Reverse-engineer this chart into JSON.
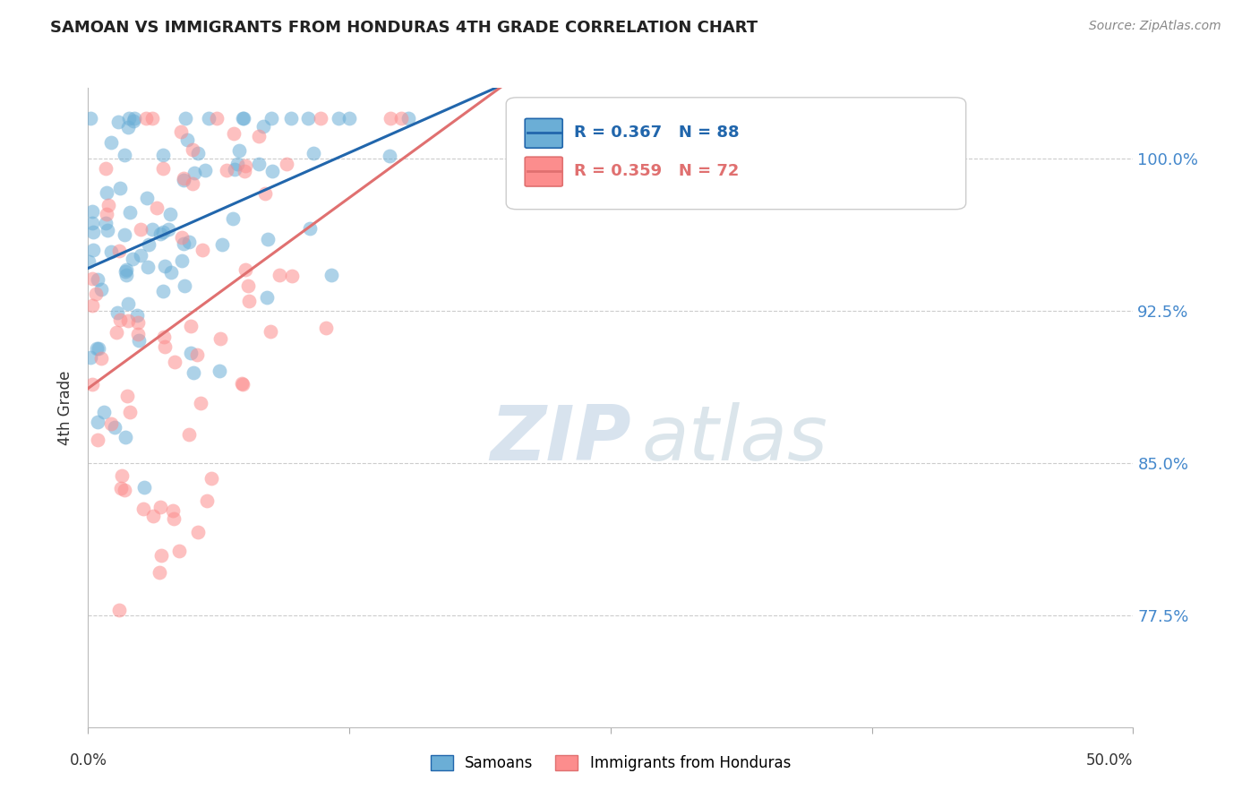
{
  "title": "SAMOAN VS IMMIGRANTS FROM HONDURAS 4TH GRADE CORRELATION CHART",
  "source": "Source: ZipAtlas.com",
  "ylabel": "4th Grade",
  "xlim": [
    0.0,
    50.0
  ],
  "ylim": [
    72.0,
    103.5
  ],
  "yticks": [
    77.5,
    85.0,
    92.5,
    100.0
  ],
  "ytick_labels": [
    "77.5%",
    "85.0%",
    "92.5%",
    "100.0%"
  ],
  "legend1_label": "R = 0.367   N = 88",
  "legend2_label": "R = 0.359   N = 72",
  "legend_bottom1": "Samoans",
  "legend_bottom2": "Immigrants from Honduras",
  "samoans_color": "#6baed6",
  "honduras_color": "#fc8d8d",
  "samoans_line_color": "#2166ac",
  "honduras_line_color": "#e07070",
  "samoans_R": 0.367,
  "samoans_N": 88,
  "honduras_R": 0.359,
  "honduras_N": 72,
  "background_color": "#ffffff",
  "grid_color": "#cccccc",
  "title_color": "#222222",
  "right_axis_label_color": "#4488cc",
  "watermark_color": "#d0dde8",
  "watermark_zip": "ZIP",
  "watermark_atlas": "atlas"
}
